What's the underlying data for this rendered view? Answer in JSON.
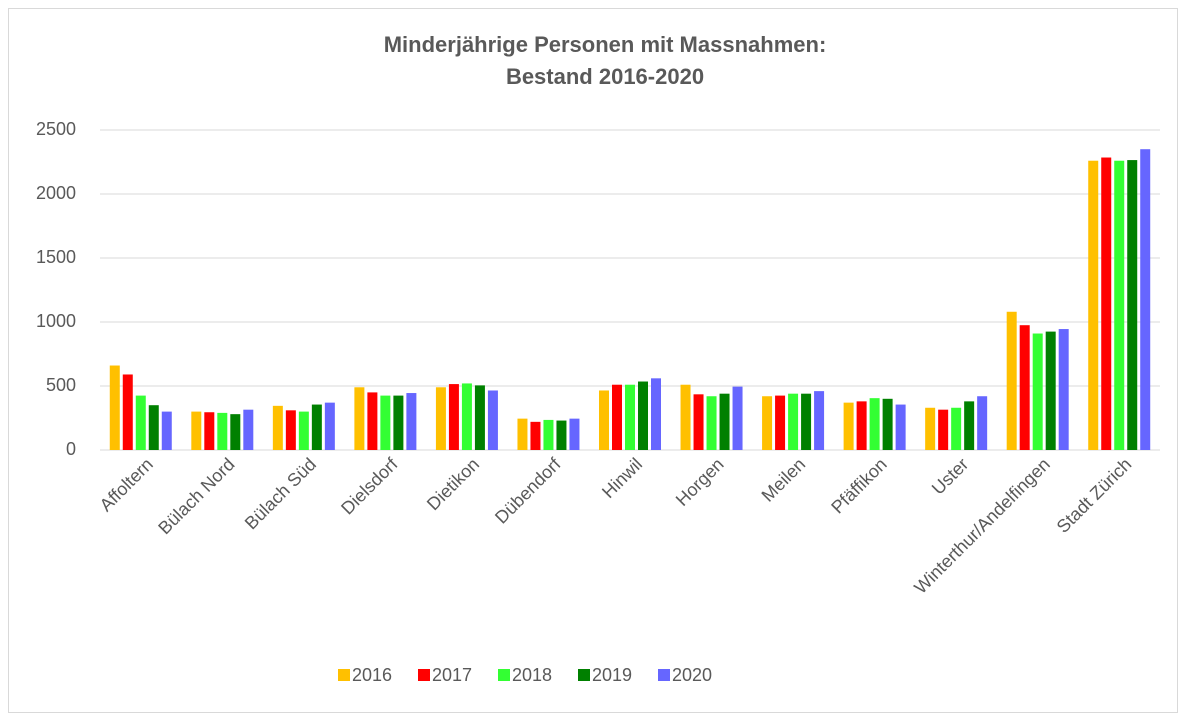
{
  "chart_data": {
    "type": "bar",
    "title": [
      "Minderjährige Personen mit Massnahmen:",
      "Bestand 2016-2020"
    ],
    "categories": [
      "Affoltern",
      "Bülach Nord",
      "Bülach Süd",
      "Dielsdorf",
      "Dietikon",
      "Dübendorf",
      "Hinwil",
      "Horgen",
      "Meilen",
      "Pfäffikon",
      "Uster",
      "Winterthur/Andelfingen",
      "Stadt Zürich"
    ],
    "series": [
      {
        "name": "2016",
        "color": "#ffc000",
        "values": [
          660,
          300,
          345,
          490,
          490,
          245,
          465,
          510,
          420,
          370,
          330,
          1080,
          2260
        ]
      },
      {
        "name": "2017",
        "color": "#ff0000",
        "values": [
          590,
          295,
          310,
          450,
          515,
          220,
          510,
          435,
          425,
          380,
          315,
          975,
          2285
        ]
      },
      {
        "name": "2018",
        "color": "#33ff33",
        "values": [
          425,
          290,
          300,
          425,
          520,
          235,
          510,
          420,
          440,
          405,
          330,
          910,
          2260
        ]
      },
      {
        "name": "2019",
        "color": "#008000",
        "values": [
          350,
          280,
          355,
          425,
          505,
          230,
          535,
          440,
          440,
          400,
          380,
          925,
          2265
        ]
      },
      {
        "name": "2020",
        "color": "#6666ff",
        "values": [
          300,
          315,
          370,
          445,
          465,
          245,
          560,
          495,
          460,
          355,
          420,
          945,
          2350
        ]
      }
    ],
    "ylim": [
      0,
      2500
    ],
    "yticks": [
      0,
      500,
      1000,
      1500,
      2000,
      2500
    ],
    "grid": true,
    "legend": "bottom"
  }
}
